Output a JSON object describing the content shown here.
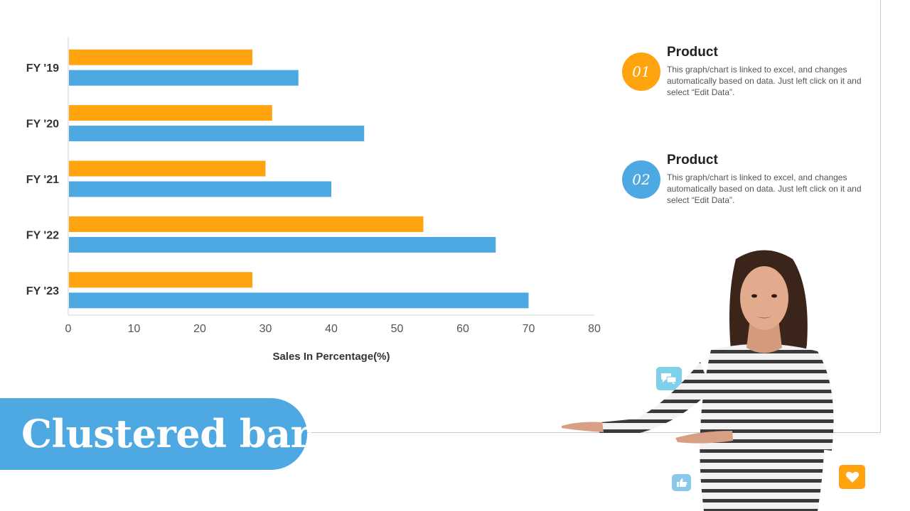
{
  "slide": {
    "title": "Clustered bar"
  },
  "chart_data": {
    "type": "bar",
    "orientation": "horizontal",
    "categories": [
      "FY '19",
      "FY '20",
      "FY '21",
      "FY '22",
      "FY '23"
    ],
    "series": [
      {
        "name": "Product 01",
        "color": "#ffa40f",
        "values": [
          28,
          31,
          30,
          54,
          28
        ]
      },
      {
        "name": "Product 02",
        "color": "#4ea9e2",
        "values": [
          35,
          45,
          40,
          65,
          70
        ]
      }
    ],
    "xlabel": "Sales In Percentage(%)",
    "ylabel": "",
    "xlim": [
      0,
      80
    ],
    "xticks": [
      "0",
      "10",
      "20",
      "30",
      "40",
      "50",
      "60",
      "70",
      "80"
    ],
    "grid": false
  },
  "legend": [
    {
      "badge": "01",
      "title": "Product",
      "color": "#ffa40f",
      "text": "This graph/chart is linked to excel, and changes automatically based on data. Just left click on it and select “Edit Data”."
    },
    {
      "badge": "02",
      "title": "Product",
      "color": "#4ea9e2",
      "text": "This graph/chart is linked to excel, and changes automatically based on data. Just left click on it and select “Edit Data”."
    }
  ],
  "icons": {
    "chat": {
      "name": "chat-icon",
      "color": "#7fd0ea"
    },
    "like": {
      "name": "thumbs-up-icon",
      "color": "#8ac9ec"
    },
    "heart": {
      "name": "heart-icon",
      "color": "#ffa40f"
    }
  }
}
